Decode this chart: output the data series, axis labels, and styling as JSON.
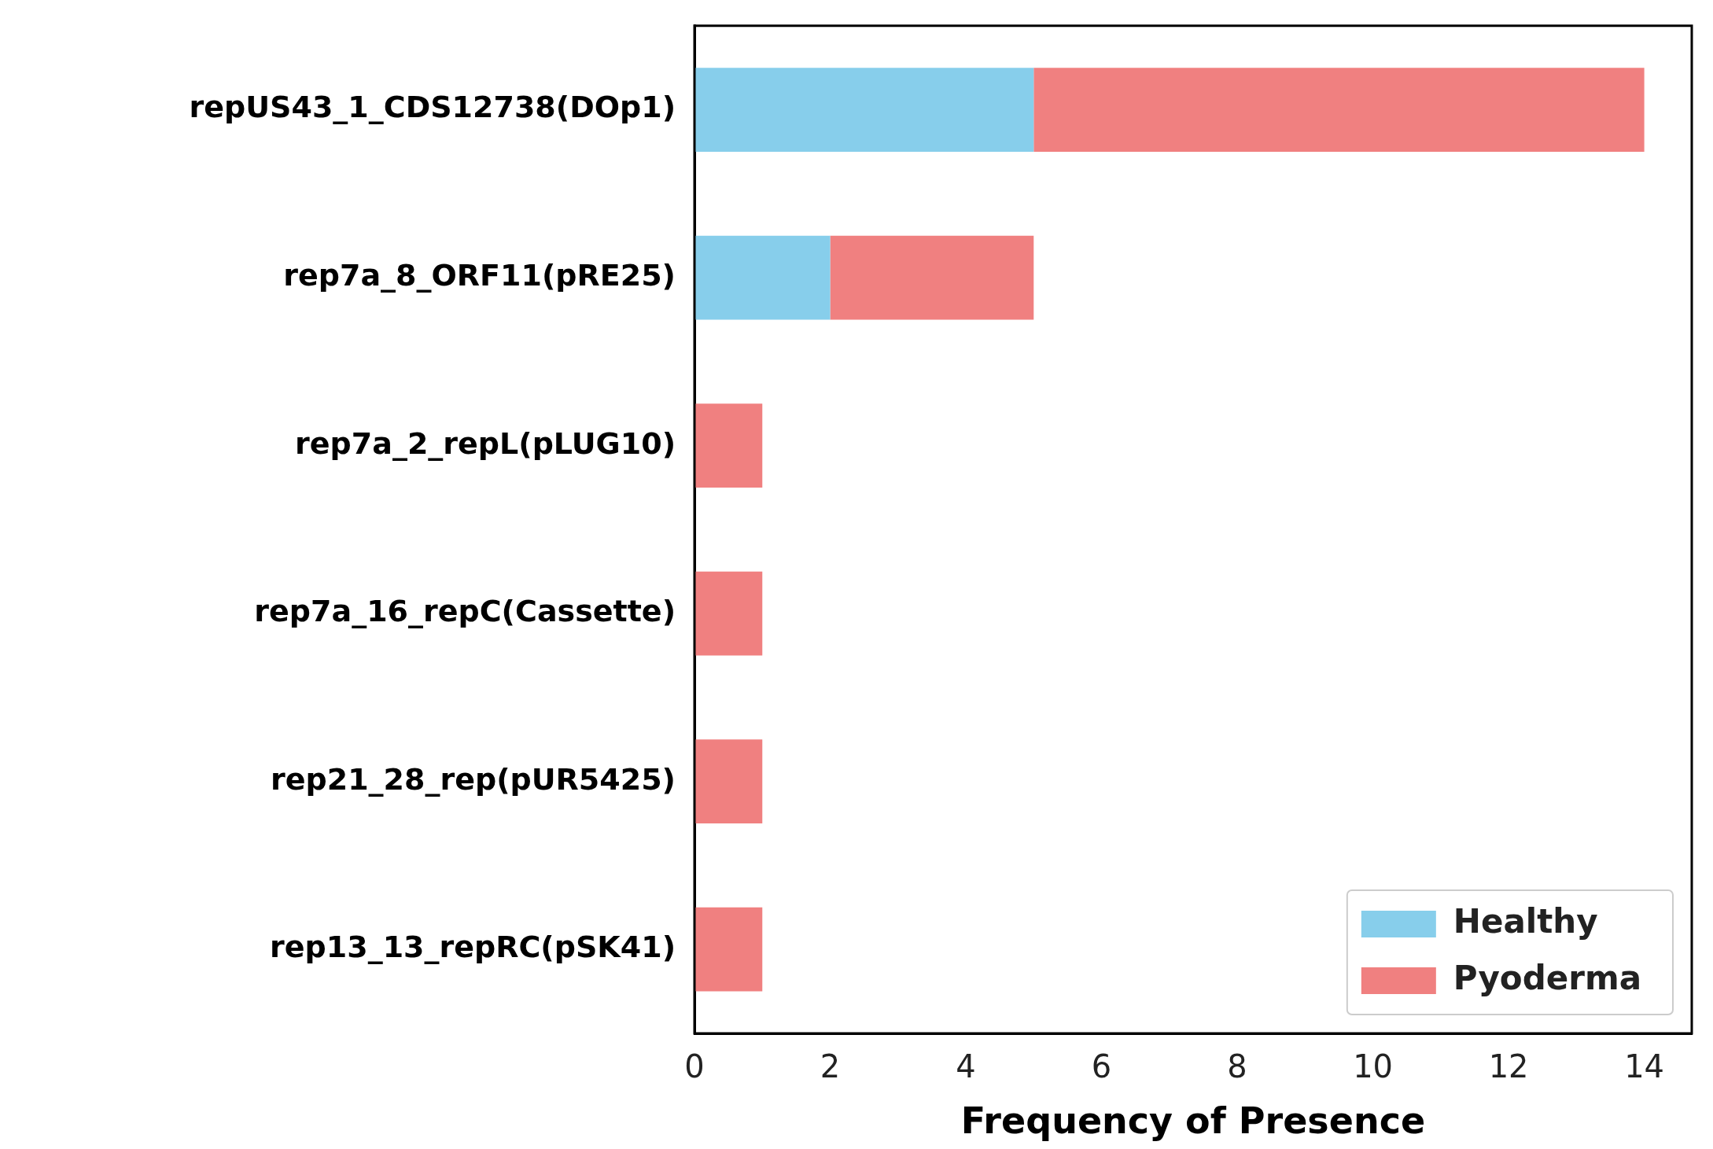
{
  "chart_data": {
    "type": "bar",
    "orientation": "horizontal",
    "stacked": true,
    "xlabel": "Frequency of Presence",
    "categories": [
      "repUS43_1_CDS12738(DOp1)",
      "rep7a_8_ORF11(pRE25)",
      "rep7a_2_repL(pLUG10)",
      "rep7a_16_repC(Cassette)",
      "rep21_28_rep(pUR5425)",
      "rep13_13_repRC(pSK41)"
    ],
    "series": [
      {
        "name": "Healthy",
        "color": "#87ceeb",
        "values": [
          5,
          2,
          0,
          0,
          0,
          0
        ]
      },
      {
        "name": "Pyoderma",
        "color": "#f08080",
        "values": [
          9,
          3,
          1,
          1,
          1,
          1
        ]
      }
    ],
    "xlim": [
      0,
      14.7
    ],
    "xticks": [
      0,
      2,
      4,
      6,
      8,
      10,
      12,
      14
    ],
    "grid": false,
    "legend": "bottom right"
  }
}
